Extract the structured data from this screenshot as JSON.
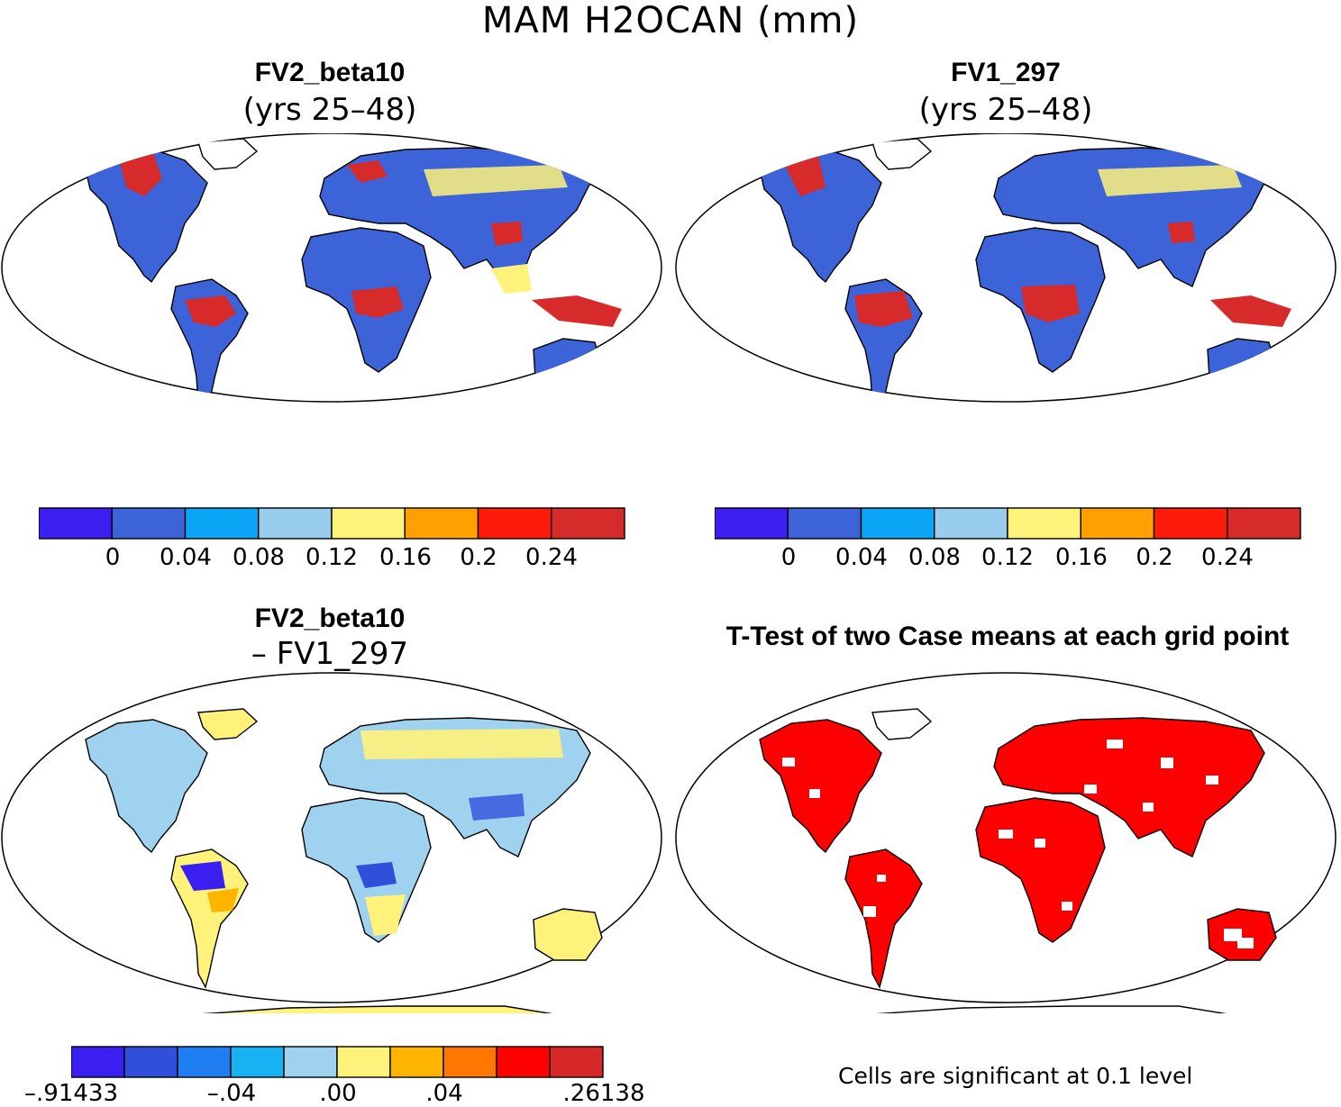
{
  "title": "MAM H2OCAN (mm)",
  "colors": {
    "colorbar_abs": [
      "#3a1ff0",
      "#3d63d9",
      "#0aa6f5",
      "#99cdee",
      "#fff27a",
      "#ffa000",
      "#ff1a0a",
      "#d72a2a"
    ],
    "colorbar_diff": [
      "#3a1ff0",
      "#3050db",
      "#1f7ef2",
      "#17b2f2",
      "#9fd2ef",
      "#fff27a",
      "#ffb400",
      "#ff7700",
      "#ff0000",
      "#d62828"
    ],
    "land_low": "#3d63d9",
    "diff_land": "#fff27a",
    "significant": "#ff0000"
  },
  "panels": [
    {
      "id": "top-left",
      "title": "FV2_beta10",
      "subtitle": "(yrs 25–48)",
      "colorbar_labels": [
        "0",
        "0.04",
        "0.08",
        "0.12",
        "0.16",
        "0.2",
        "0.24"
      ]
    },
    {
      "id": "top-right",
      "title": "FV1_297",
      "subtitle": "(yrs 25–48)",
      "colorbar_labels": [
        "0",
        "0.04",
        "0.08",
        "0.12",
        "0.16",
        "0.2",
        "0.24"
      ]
    },
    {
      "id": "bottom-left",
      "title": "FV2_beta10",
      "subtitle": "– FV1_297",
      "colorbar_labels": [
        ".91433",
        "–.04",
        ".00",
        ".04",
        ".26138"
      ]
    },
    {
      "id": "bottom-right",
      "title": "T-Test of two Case means at each grid point",
      "note": "Cells are significant at 0.1 level"
    }
  ]
}
